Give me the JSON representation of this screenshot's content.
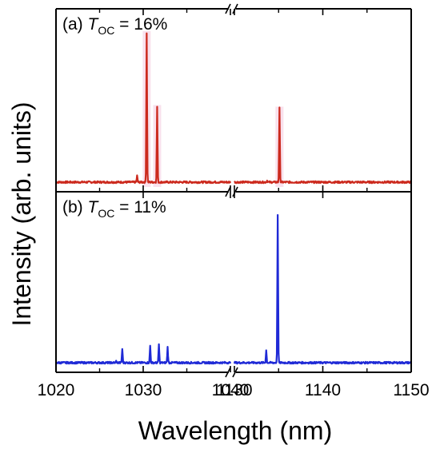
{
  "chart_data": {
    "type": "line",
    "xlabel": "Wavelength (nm)",
    "ylabel": "Intensity (arb. units)",
    "x_axis_break": [
      1040,
      1130
    ],
    "xlim_left": [
      1020,
      1040
    ],
    "xlim_right": [
      1130,
      1150
    ],
    "x_ticks": [
      1020,
      1030,
      1040,
      1130,
      1140,
      1150
    ],
    "x_tick_labels": [
      "1020",
      "1030",
      "1040",
      "1130",
      "1140",
      "1150"
    ],
    "panels": [
      {
        "label_prefix": "(a) ",
        "label_symbol": "T",
        "label_subscript": "OC",
        "label_value": " = 16%",
        "color": "#cc2a1e",
        "highlight_color": "#f4c9de",
        "baseline": 0.05,
        "peaks": [
          {
            "x": 1029.3,
            "y": 0.09
          },
          {
            "x": 1030.4,
            "y": 1.0
          },
          {
            "x": 1031.6,
            "y": 0.53
          },
          {
            "x": 1133.7,
            "y": 0.06
          },
          {
            "x": 1135.1,
            "y": 0.52
          }
        ]
      },
      {
        "label_prefix": "(b) ",
        "label_symbol": "T",
        "label_subscript": "OC",
        "label_value": " = 11%",
        "color": "#1f2ad6",
        "baseline": 0.05,
        "peaks": [
          {
            "x": 1026.9,
            "y": 0.06
          },
          {
            "x": 1027.6,
            "y": 0.14
          },
          {
            "x": 1030.8,
            "y": 0.16
          },
          {
            "x": 1031.8,
            "y": 0.17
          },
          {
            "x": 1032.8,
            "y": 0.15
          },
          {
            "x": 1133.6,
            "y": 0.13
          },
          {
            "x": 1134.9,
            "y": 1.0
          }
        ]
      }
    ]
  }
}
